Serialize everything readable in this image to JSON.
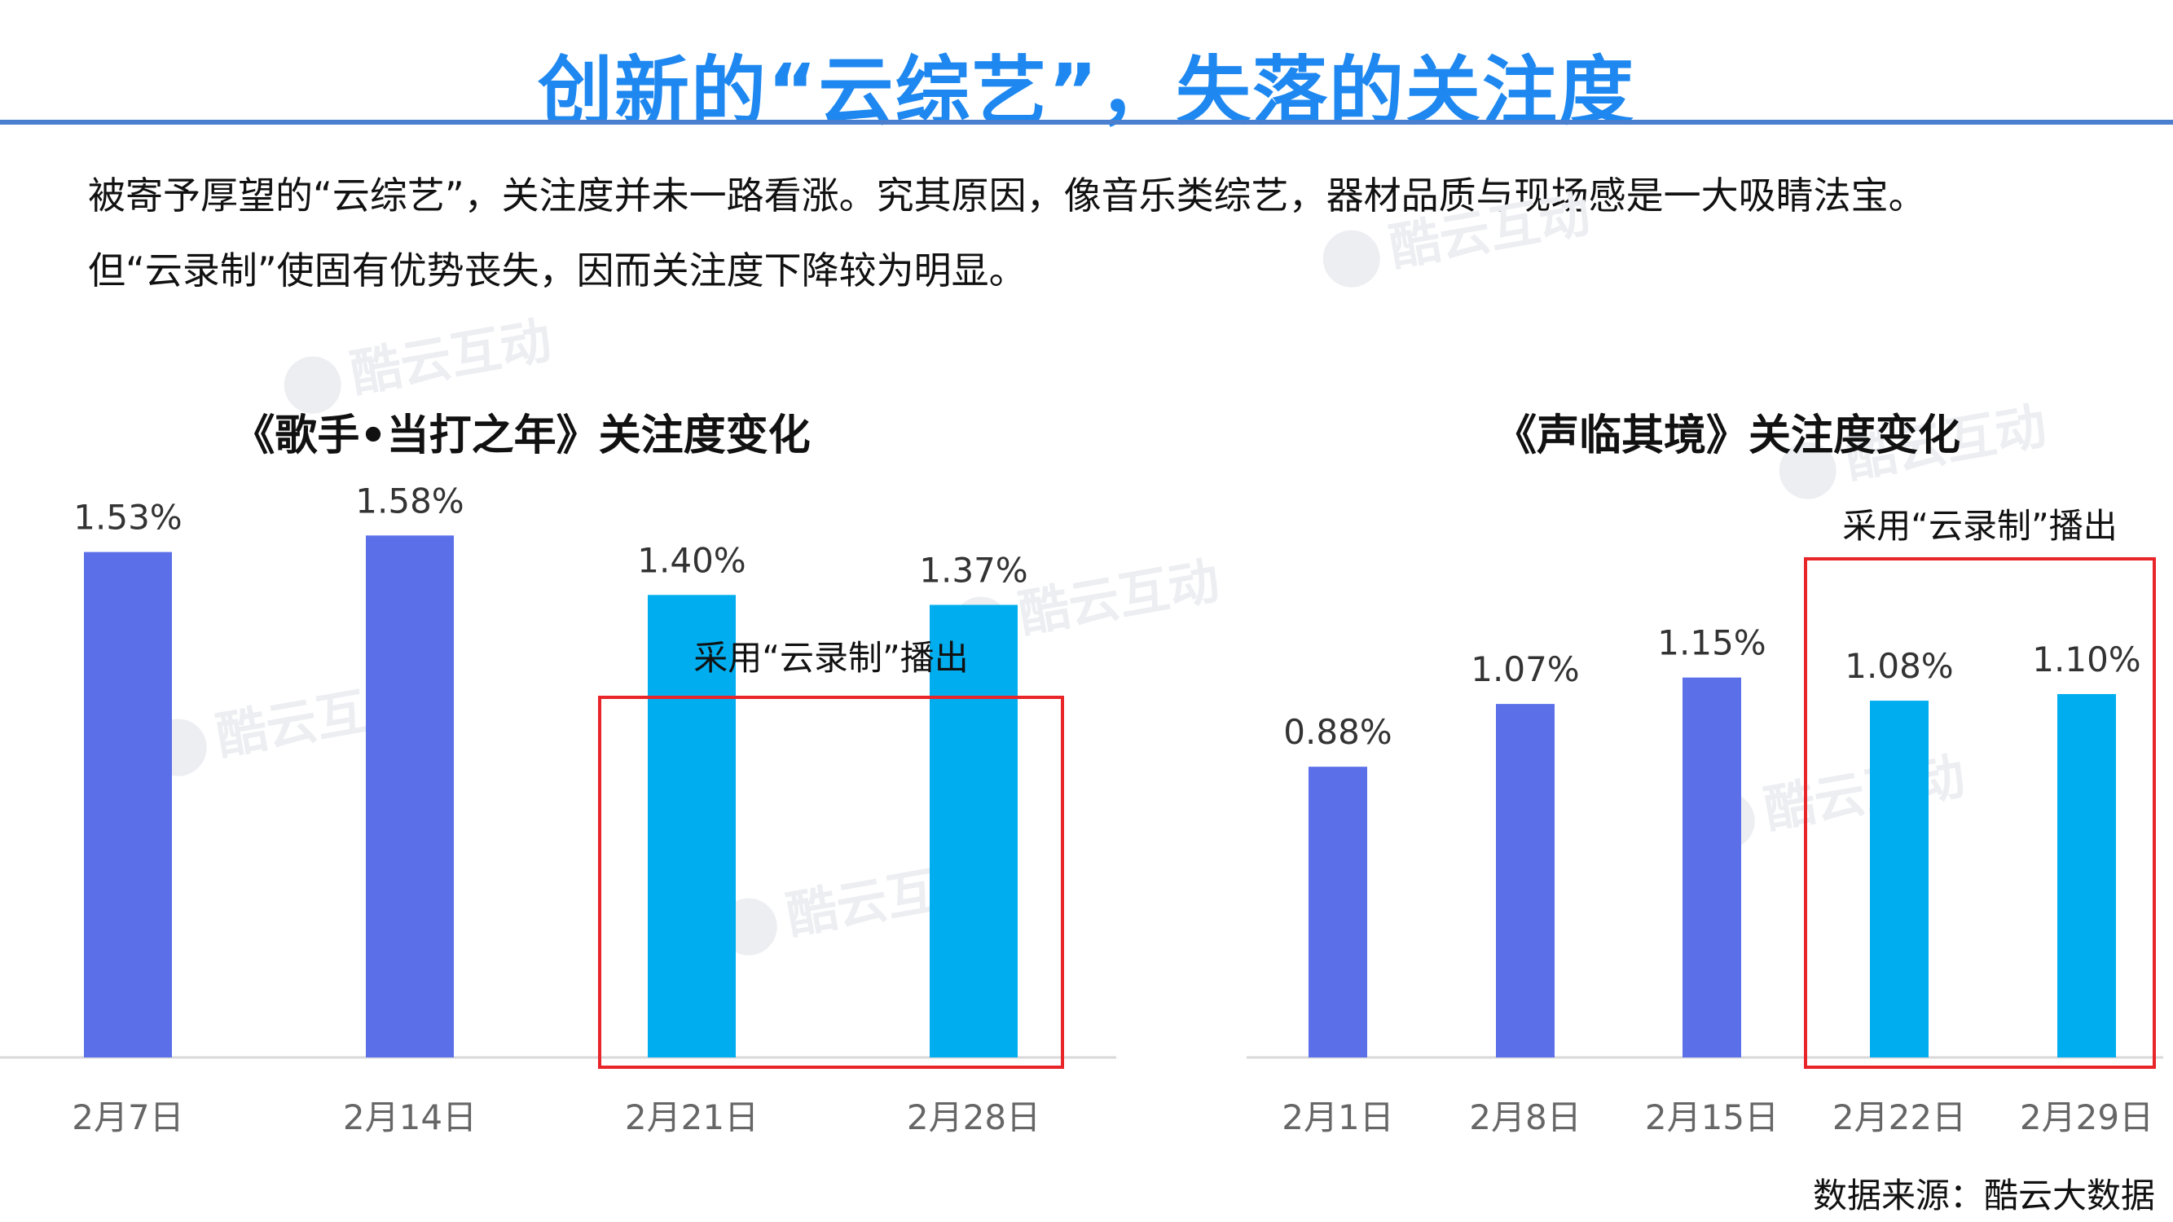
{
  "slide": {
    "title": "创新的“云综艺”，失落的关注度",
    "intro_lines": [
      "被寄予厚望的“云综艺”，关注度并未一路看涨。究其原因，像音乐类综艺，器材品质与现场感是一大吸睛法宝。",
      "但“云录制”使固有优势丧失，因而关注度下降较为明显。"
    ],
    "watermark": "酷云互动",
    "source": "数据来源：酷云大数据"
  },
  "colors": {
    "title": "#1e88f0",
    "bar_normal": "#5b6fe8",
    "bar_cloud": "#00aeef",
    "highlight_box": "#e8262a"
  },
  "chart_data": [
    {
      "type": "bar",
      "title": "《歌手•当打之年》关注度变化",
      "categories": [
        "2月7日",
        "2月14日",
        "2月21日",
        "2月28日"
      ],
      "values": [
        1.53,
        1.58,
        1.4,
        1.37
      ],
      "value_labels": [
        "1.53%",
        "1.58%",
        "1.40%",
        "1.37%"
      ],
      "unit": "%",
      "highlight": {
        "label": "采用“云录制”播出",
        "categories": [
          "2月21日",
          "2月28日"
        ]
      },
      "grid": false,
      "ylim": [
        0.0,
        1.7
      ]
    },
    {
      "type": "bar",
      "title": "《声临其境》关注度变化",
      "categories": [
        "2月1日",
        "2月8日",
        "2月15日",
        "2月22日",
        "2月29日"
      ],
      "values": [
        0.88,
        1.07,
        1.15,
        1.08,
        1.1
      ],
      "value_labels": [
        "0.88%",
        "1.07%",
        "1.15%",
        "1.08%",
        "1.10%"
      ],
      "unit": "%",
      "highlight": {
        "label": "采用“云录制”播出",
        "categories": [
          "2月22日",
          "2月29日"
        ]
      },
      "grid": false,
      "ylim": [
        0.0,
        1.2
      ]
    }
  ]
}
